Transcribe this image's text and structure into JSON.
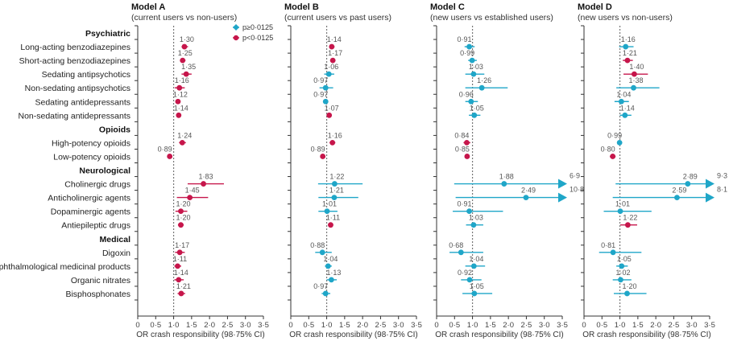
{
  "chart_data": {
    "type": "forest",
    "legend": {
      "placement": "top-right of Model A",
      "items": [
        {
          "label": "p≥0·0125",
          "color": "#1fa6c8",
          "key": "ns"
        },
        {
          "label": "p<0·0125",
          "color": "#c6164b",
          "key": "sig"
        }
      ]
    },
    "rows": [
      {
        "label": "Psychiatric",
        "header": true
      },
      {
        "label": "Long-acting benzodiazepines"
      },
      {
        "label": "Short-acting benzodiazepines"
      },
      {
        "label": "Sedating antipsychotics"
      },
      {
        "label": "Non-sedating antipsychotics"
      },
      {
        "label": "Sedating antidepressants"
      },
      {
        "label": "Non-sedating antidepressants"
      },
      {
        "label": "Opioids",
        "header": true
      },
      {
        "label": "High-potency opioids"
      },
      {
        "label": "Low-potency opioids"
      },
      {
        "label": "Neurological",
        "header": true
      },
      {
        "label": "Cholinergic drugs"
      },
      {
        "label": "Anticholinergic agents"
      },
      {
        "label": "Dopaminergic agents"
      },
      {
        "label": "Antiepileptic drugs"
      },
      {
        "label": "Medical",
        "header": true
      },
      {
        "label": "Digoxin"
      },
      {
        "label": "Ophthalmological medicinal products"
      },
      {
        "label": "Organic nitrates"
      },
      {
        "label": "Bisphosphonates"
      }
    ],
    "xlim": [
      0,
      3.5
    ],
    "reference_line": 1.0,
    "ticks": [
      "0",
      "0·5",
      "1·0",
      "1·5",
      "2·0",
      "2·5",
      "3·0",
      "3·5"
    ],
    "xlabel": "OR crash responsibility (98·75% CI)",
    "panels": [
      {
        "title": "Model A",
        "subtitle": "(current users vs non-users)",
        "points": [
          {
            "or": 1.3,
            "label": "1·30",
            "lo": 1.22,
            "hi": 1.4,
            "sig": true
          },
          {
            "or": 1.25,
            "label": "1·25",
            "lo": 1.18,
            "hi": 1.33,
            "sig": true
          },
          {
            "or": 1.35,
            "label": "1·35",
            "lo": 1.22,
            "hi": 1.5,
            "sig": true
          },
          {
            "or": 1.16,
            "label": "1·16",
            "lo": 1.03,
            "hi": 1.31,
            "sig": true
          },
          {
            "or": 1.12,
            "label": "1·12",
            "lo": 1.06,
            "hi": 1.18,
            "sig": true
          },
          {
            "or": 1.14,
            "label": "1·14",
            "lo": 1.08,
            "hi": 1.2,
            "sig": true
          },
          {
            "or": 1.24,
            "label": "1·24",
            "lo": 1.15,
            "hi": 1.34,
            "sig": true
          },
          {
            "or": 0.89,
            "label": "0·89",
            "lo": 0.84,
            "hi": 0.95,
            "sig": true
          },
          {
            "or": 1.83,
            "label": "1·83",
            "lo": 1.39,
            "hi": 2.4,
            "sig": true
          },
          {
            "or": 1.45,
            "label": "1·45",
            "lo": 1.09,
            "hi": 1.96,
            "sig": true
          },
          {
            "or": 1.2,
            "label": "1·20",
            "lo": 1.05,
            "hi": 1.38,
            "sig": true
          },
          {
            "or": 1.2,
            "label": "1·20",
            "lo": 1.12,
            "hi": 1.28,
            "sig": true
          },
          {
            "or": 1.17,
            "label": "1·17",
            "lo": 1.04,
            "hi": 1.31,
            "sig": true
          },
          {
            "or": 1.11,
            "label": "1·11",
            "lo": 1.02,
            "hi": 1.21,
            "sig": true
          },
          {
            "or": 1.14,
            "label": "1·14",
            "lo": 1.02,
            "hi": 1.28,
            "sig": true
          },
          {
            "or": 1.21,
            "label": "1·21",
            "lo": 1.11,
            "hi": 1.32,
            "sig": true
          }
        ]
      },
      {
        "title": "Model B",
        "subtitle": "(current users vs past users)",
        "points": [
          {
            "or": 1.14,
            "label": "1·14",
            "lo": 1.07,
            "hi": 1.22,
            "sig": true
          },
          {
            "or": 1.17,
            "label": "1·17",
            "lo": 1.1,
            "hi": 1.24,
            "sig": true
          },
          {
            "or": 1.06,
            "label": "1·06",
            "lo": 0.93,
            "hi": 1.21,
            "sig": false
          },
          {
            "or": 0.97,
            "label": "0·97",
            "lo": 0.8,
            "hi": 1.18,
            "sig": false
          },
          {
            "or": 0.97,
            "label": "0·97",
            "lo": 0.9,
            "hi": 1.04,
            "sig": false
          },
          {
            "or": 1.07,
            "label": "1·07",
            "lo": 1.0,
            "hi": 1.14,
            "sig": true
          },
          {
            "or": 1.16,
            "label": "1·16",
            "lo": 1.08,
            "hi": 1.24,
            "sig": true
          },
          {
            "or": 0.89,
            "label": "0·89",
            "lo": 0.83,
            "hi": 0.95,
            "sig": true
          },
          {
            "or": 1.22,
            "label": "1·22",
            "lo": 0.76,
            "hi": 2.0,
            "sig": false
          },
          {
            "or": 1.21,
            "label": "1·21",
            "lo": 0.77,
            "hi": 1.88,
            "sig": false
          },
          {
            "or": 1.01,
            "label": "1·01",
            "lo": 0.77,
            "hi": 1.3,
            "sig": false
          },
          {
            "or": 1.11,
            "label": "1·11",
            "lo": 1.04,
            "hi": 1.18,
            "sig": true
          },
          {
            "or": 0.88,
            "label": "0·88",
            "lo": 0.68,
            "hi": 1.14,
            "sig": false
          },
          {
            "or": 1.04,
            "label": "1·04",
            "lo": 0.95,
            "hi": 1.14,
            "sig": false
          },
          {
            "or": 1.13,
            "label": "1·13",
            "lo": 1.0,
            "hi": 1.28,
            "sig": false
          },
          {
            "or": 0.97,
            "label": "0·97",
            "lo": 0.86,
            "hi": 1.1,
            "sig": false
          }
        ]
      },
      {
        "title": "Model C",
        "subtitle": "(new users vs established users)",
        "points": [
          {
            "or": 0.91,
            "label": "0·91",
            "lo": 0.78,
            "hi": 1.06,
            "sig": false
          },
          {
            "or": 0.99,
            "label": "0·99",
            "lo": 0.88,
            "hi": 1.12,
            "sig": false
          },
          {
            "or": 1.03,
            "label": "1·03",
            "lo": 0.8,
            "hi": 1.33,
            "sig": false
          },
          {
            "or": 1.26,
            "label": "1·26",
            "lo": 0.8,
            "hi": 1.98,
            "sig": false
          },
          {
            "or": 0.96,
            "label": "0·96",
            "lo": 0.8,
            "hi": 1.15,
            "sig": false
          },
          {
            "or": 1.05,
            "label": "1·05",
            "lo": 0.9,
            "hi": 1.22,
            "sig": false
          },
          {
            "or": 0.84,
            "label": "0·84",
            "lo": 0.75,
            "hi": 0.94,
            "sig": true
          },
          {
            "or": 0.85,
            "label": "0·85",
            "lo": 0.8,
            "hi": 0.9,
            "sig": true
          },
          {
            "or": 1.88,
            "label": "1·88",
            "lo": 0.49,
            "hi": 6.9,
            "hi_label": "6·9",
            "sig": false
          },
          {
            "or": 2.49,
            "label": "2·49",
            "lo": 0.53,
            "hi": 10.8,
            "hi_label": "10·8",
            "sig": false
          },
          {
            "or": 0.91,
            "label": "0·91",
            "lo": 0.45,
            "hi": 1.85,
            "sig": false
          },
          {
            "or": 1.03,
            "label": "1·03",
            "lo": 0.82,
            "hi": 1.3,
            "sig": false
          },
          {
            "or": 0.68,
            "label": "0·68",
            "lo": 0.36,
            "hi": 1.3,
            "sig": false
          },
          {
            "or": 1.04,
            "label": "1·04",
            "lo": 0.8,
            "hi": 1.35,
            "sig": false
          },
          {
            "or": 0.92,
            "label": "0·92",
            "lo": 0.68,
            "hi": 1.25,
            "sig": false
          },
          {
            "or": 1.05,
            "label": "1·05",
            "lo": 0.72,
            "hi": 1.55,
            "sig": false
          }
        ]
      },
      {
        "title": "Model D",
        "subtitle": "(new users vs non-users)",
        "points": [
          {
            "or": 1.16,
            "label": "1·16",
            "lo": 0.98,
            "hi": 1.38,
            "sig": false
          },
          {
            "or": 1.21,
            "label": "1·21",
            "lo": 1.08,
            "hi": 1.36,
            "sig": true
          },
          {
            "or": 1.4,
            "label": "1·40",
            "lo": 1.1,
            "hi": 1.78,
            "sig": true
          },
          {
            "or": 1.38,
            "label": "1·38",
            "lo": 0.9,
            "hi": 2.1,
            "sig": false
          },
          {
            "or": 1.04,
            "label": "1·04",
            "lo": 0.85,
            "hi": 1.25,
            "sig": false
          },
          {
            "or": 1.14,
            "label": "1·14",
            "lo": 1.0,
            "hi": 1.32,
            "sig": false
          },
          {
            "or": 0.99,
            "label": "0·99",
            "lo": 0.92,
            "hi": 1.06,
            "sig": false
          },
          {
            "or": 0.8,
            "label": "0·80",
            "lo": 0.72,
            "hi": 0.88,
            "sig": true
          },
          {
            "or": 2.89,
            "label": "2·89",
            "lo": 0.88,
            "hi": 9.3,
            "hi_label": "9·3",
            "sig": false
          },
          {
            "or": 2.59,
            "label": "2·59",
            "lo": 0.8,
            "hi": 8.1,
            "hi_label": "8·1",
            "sig": false
          },
          {
            "or": 1.01,
            "label": "1·01",
            "lo": 0.55,
            "hi": 1.88,
            "sig": false
          },
          {
            "or": 1.22,
            "label": "1·22",
            "lo": 1.01,
            "hi": 1.48,
            "sig": true
          },
          {
            "or": 0.81,
            "label": "0·81",
            "lo": 0.42,
            "hi": 1.6,
            "sig": false
          },
          {
            "or": 1.05,
            "label": "1·05",
            "lo": 0.9,
            "hi": 1.22,
            "sig": false
          },
          {
            "or": 1.02,
            "label": "1·02",
            "lo": 0.8,
            "hi": 1.32,
            "sig": false
          },
          {
            "or": 1.2,
            "label": "1·20",
            "lo": 0.83,
            "hi": 1.74,
            "sig": false
          }
        ]
      }
    ]
  }
}
